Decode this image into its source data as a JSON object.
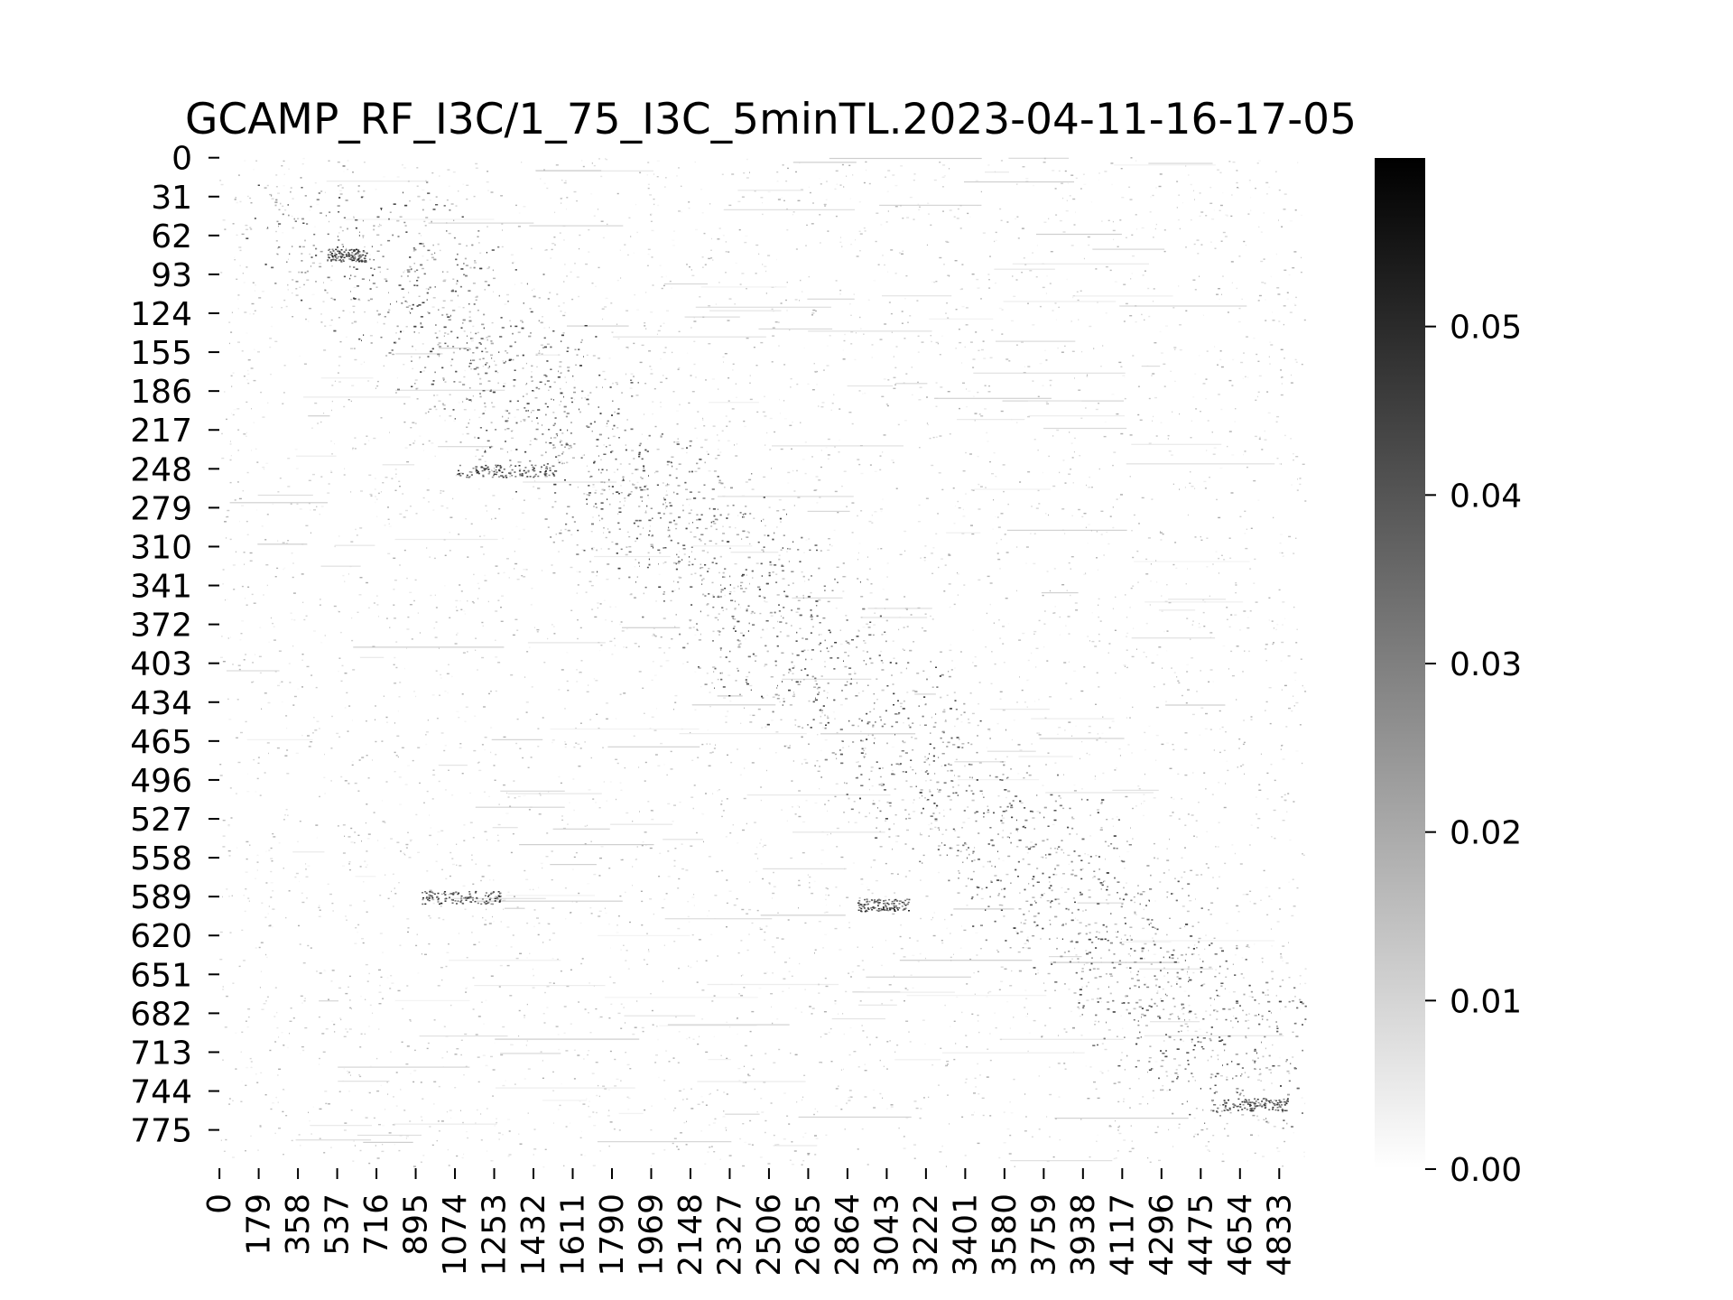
{
  "chart_data": {
    "type": "heatmap",
    "title": "GCAMP_RF_I3C/1_75_I3C_5minTL.2023-04-11-16-17-05",
    "xlabel": "",
    "ylabel": "",
    "colormap": "Greys",
    "color_min": "#ffffff",
    "color_max": "#000000",
    "n_rows": 806,
    "n_cols": 4960,
    "yticks": [
      0,
      31,
      62,
      93,
      124,
      155,
      186,
      217,
      248,
      279,
      310,
      341,
      372,
      403,
      434,
      465,
      496,
      527,
      558,
      589,
      620,
      651,
      682,
      713,
      744,
      775
    ],
    "xticks": [
      0,
      179,
      358,
      537,
      716,
      895,
      1074,
      1253,
      1432,
      1611,
      1790,
      1969,
      2148,
      2327,
      2506,
      2685,
      2864,
      3043,
      3222,
      3401,
      3580,
      3759,
      3938,
      4117,
      4296,
      4475,
      4654,
      4833
    ],
    "colorbar": {
      "range": [
        0,
        0.06
      ],
      "ticks": [
        0.0,
        0.01,
        0.02,
        0.03,
        0.04,
        0.05
      ],
      "tick_labels": [
        "0.00",
        "0.01",
        "0.02",
        "0.03",
        "0.04",
        "0.05"
      ]
    },
    "description_of_pattern": "sparse activity; diagonal band running from top-left (row ~40, col ~500) to bottom-right (row ~750, col ~4900)"
  }
}
